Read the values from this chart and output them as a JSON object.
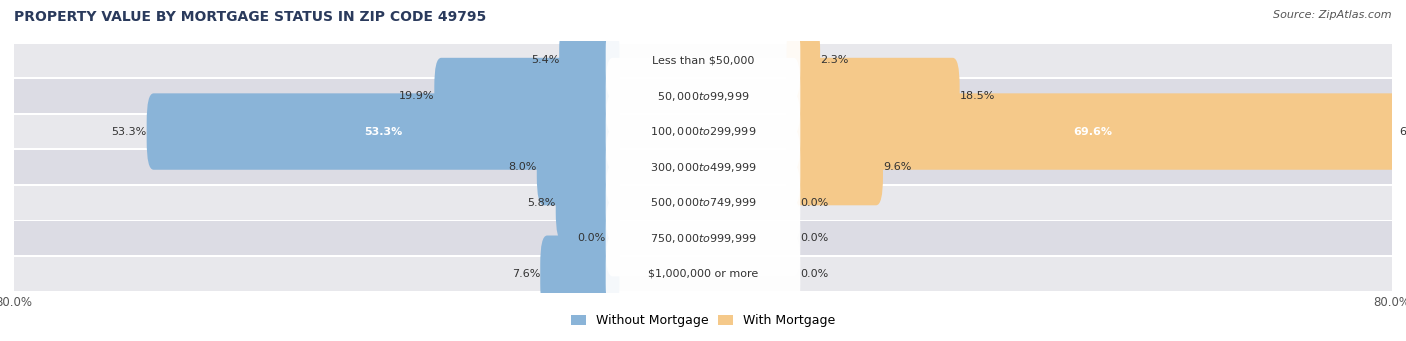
{
  "title": "PROPERTY VALUE BY MORTGAGE STATUS IN ZIP CODE 49795",
  "source": "Source: ZipAtlas.com",
  "categories": [
    "Less than $50,000",
    "$50,000 to $99,999",
    "$100,000 to $299,999",
    "$300,000 to $499,999",
    "$500,000 to $749,999",
    "$750,000 to $999,999",
    "$1,000,000 or more"
  ],
  "without_mortgage": [
    5.4,
    19.9,
    53.3,
    8.0,
    5.8,
    0.0,
    7.6
  ],
  "with_mortgage": [
    2.3,
    18.5,
    69.6,
    9.6,
    0.0,
    0.0,
    0.0
  ],
  "color_without": "#8ab4d8",
  "color_with": "#f5c98a",
  "bar_row_bg_odd": "#e8e8ec",
  "bar_row_bg_even": "#dcdce4",
  "axis_max": 80.0,
  "x_tick_label_left": "80.0%",
  "x_tick_label_right": "80.0%",
  "title_fontsize": 10,
  "source_fontsize": 8,
  "legend_fontsize": 9,
  "label_fontsize": 8,
  "category_fontsize": 8,
  "figsize": [
    14.06,
    3.41
  ]
}
